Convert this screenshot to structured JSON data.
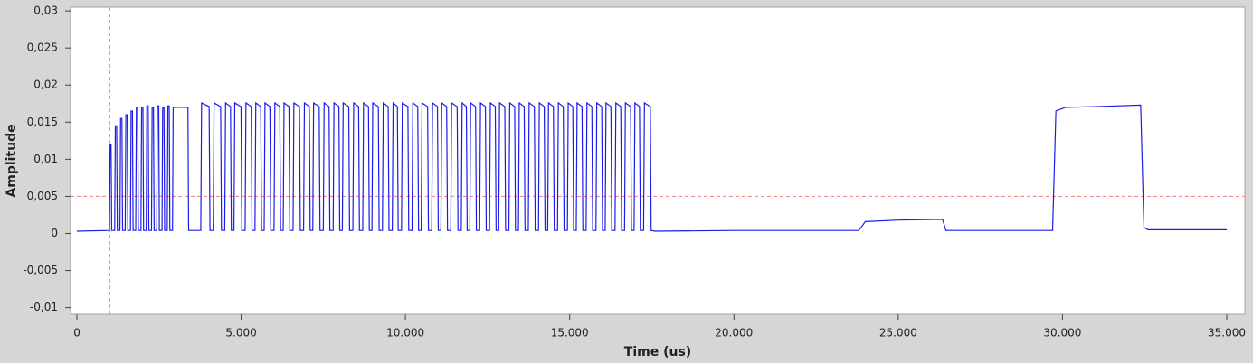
{
  "chart_data": {
    "type": "line",
    "xlabel": "Time (us)",
    "ylabel": "Amplitude",
    "color": "#1c1ce8",
    "marker_color": "#f08080",
    "trigger_x": 1000,
    "trigger_y": 0.005,
    "xlim": [
      -193,
      35551
    ],
    "ylim": [
      -0.0109,
      0.0305
    ],
    "xticks": [
      0,
      {
        "value": 5000,
        "label": "5.000"
      },
      {
        "value": 10000,
        "label": "10.000"
      },
      {
        "value": 15000,
        "label": "15.000"
      },
      {
        "value": 20000,
        "label": "20.000"
      },
      {
        "value": 25000,
        "label": "25.000"
      },
      {
        "value": 30000,
        "label": "30.000"
      },
      {
        "value": 35000,
        "label": "35.000"
      }
    ],
    "yticks": [
      {
        "value": 0.03,
        "label": "0,03"
      },
      {
        "value": 0.025,
        "label": "0,025"
      },
      {
        "value": 0.02,
        "label": "0,02"
      },
      {
        "value": 0.015,
        "label": "0,015"
      },
      {
        "value": 0.01,
        "label": "0,01"
      },
      {
        "value": 0.005,
        "label": "0,005"
      },
      0,
      {
        "value": -0.005,
        "label": "-0,005"
      },
      {
        "value": -0.01,
        "label": "-0,01"
      }
    ],
    "x": [
      0,
      991,
      1011,
      1040,
      1060,
      1150,
      1170,
      1210,
      1230,
      1310,
      1330,
      1370,
      1390,
      1470,
      1490,
      1530,
      1550,
      1630,
      1650,
      1690,
      1710,
      1790,
      1810,
      1850,
      1870,
      1950,
      1970,
      2010,
      2030,
      2110,
      2130,
      2170,
      2190,
      2270,
      2290,
      2330,
      2350,
      2430,
      2450,
      2490,
      2510,
      2590,
      2610,
      2650,
      2670,
      2750,
      2770,
      2810,
      2830,
      2910,
      2930,
      3380,
      3400,
      3770,
      3795,
      4025,
      4050,
      4150,
      4175,
      4375,
      4400,
      4500,
      4525,
      4675,
      4700,
      4780,
      4805,
      4995,
      5020,
      5120,
      5145,
      5305,
      5330,
      5420,
      5445,
      5595,
      5620,
      5700,
      5725,
      5875,
      5900,
      6000,
      6025,
      6175,
      6200,
      6280,
      6305,
      6455,
      6480,
      6580,
      6605,
      6775,
      6800,
      6900,
      6925,
      7075,
      7100,
      7180,
      7205,
      7375,
      7400,
      7500,
      7525,
      7675,
      7700,
      7800,
      7825,
      7975,
      8000,
      8080,
      8105,
      8275,
      8300,
      8400,
      8425,
      8575,
      8600,
      8700,
      8725,
      8875,
      8900,
      8980,
      9005,
      9175,
      9200,
      9300,
      9325,
      9475,
      9500,
      9600,
      9625,
      9755,
      9780,
      9880,
      9905,
      10075,
      10100,
      10200,
      10225,
      10375,
      10400,
      10480,
      10505,
      10675,
      10700,
      10800,
      10825,
      10975,
      11000,
      11080,
      11105,
      11255,
      11280,
      11380,
      11405,
      11575,
      11600,
      11700,
      11725,
      11855,
      11880,
      11960,
      11985,
      12135,
      12160,
      12260,
      12285,
      12435,
      12460,
      12560,
      12585,
      12735,
      12760,
      12840,
      12865,
      13025,
      13050,
      13150,
      13175,
      13325,
      13350,
      13440,
      13465,
      13615,
      13640,
      13740,
      13765,
      13925,
      13950,
      14050,
      14075,
      14225,
      14250,
      14330,
      14355,
      14505,
      14530,
      14630,
      14655,
      14805,
      14830,
      14930,
      14955,
      15095,
      15120,
      15200,
      15225,
      15375,
      15400,
      15500,
      15525,
      15675,
      15700,
      15800,
      15825,
      15975,
      16000,
      16080,
      16105,
      16255,
      16280,
      16380,
      16405,
      16555,
      16580,
      16670,
      16695,
      16855,
      16880,
      16960,
      16985,
      17125,
      17150,
      17250,
      17275,
      17455,
      17480,
      17600,
      20000,
      23800,
      24000,
      25000,
      26350,
      26450,
      29700,
      29800,
      30100,
      31000,
      32380,
      32480,
      32600,
      35000
    ],
    "values": [
      0.0003,
      0.0004,
      0.012,
      0.012,
      0.0004,
      0.0004,
      0.0145,
      0.0145,
      0.0004,
      0.0004,
      0.0155,
      0.0155,
      0.0004,
      0.0004,
      0.016,
      0.016,
      0.0004,
      0.0004,
      0.0165,
      0.0165,
      0.0004,
      0.0004,
      0.017,
      0.017,
      0.0004,
      0.0004,
      0.017,
      0.017,
      0.0004,
      0.0004,
      0.0172,
      0.0172,
      0.0004,
      0.0004,
      0.017,
      0.017,
      0.0004,
      0.0004,
      0.0172,
      0.0172,
      0.0004,
      0.0004,
      0.017,
      0.017,
      0.0004,
      0.0004,
      0.0172,
      0.0172,
      0.0004,
      0.0004,
      0.017,
      0.017,
      0.0004,
      0.0004,
      0.0176,
      0.0171,
      0.0004,
      0.0004,
      0.0176,
      0.0171,
      0.0004,
      0.0004,
      0.0176,
      0.0171,
      0.0004,
      0.0004,
      0.0176,
      0.0171,
      0.0004,
      0.0004,
      0.0176,
      0.0171,
      0.0004,
      0.0004,
      0.0176,
      0.0171,
      0.0004,
      0.0004,
      0.0176,
      0.0171,
      0.0004,
      0.0004,
      0.0176,
      0.0171,
      0.0004,
      0.0004,
      0.0176,
      0.0171,
      0.0004,
      0.0004,
      0.0176,
      0.0171,
      0.0004,
      0.0004,
      0.0176,
      0.0171,
      0.0004,
      0.0004,
      0.0176,
      0.0171,
      0.0004,
      0.0004,
      0.0176,
      0.0171,
      0.0004,
      0.0004,
      0.0176,
      0.0171,
      0.0004,
      0.0004,
      0.0176,
      0.0171,
      0.0004,
      0.0004,
      0.0176,
      0.0171,
      0.0004,
      0.0004,
      0.0176,
      0.0171,
      0.0004,
      0.0004,
      0.0176,
      0.0171,
      0.0004,
      0.0004,
      0.0176,
      0.0171,
      0.0004,
      0.0004,
      0.0176,
      0.0171,
      0.0004,
      0.0004,
      0.0176,
      0.0171,
      0.0004,
      0.0004,
      0.0176,
      0.0171,
      0.0004,
      0.0004,
      0.0176,
      0.0171,
      0.0004,
      0.0004,
      0.0176,
      0.0171,
      0.0004,
      0.0004,
      0.0176,
      0.0171,
      0.0004,
      0.0004,
      0.0176,
      0.0171,
      0.0004,
      0.0004,
      0.0176,
      0.0171,
      0.0004,
      0.0004,
      0.0176,
      0.0171,
      0.0004,
      0.0004,
      0.0176,
      0.0171,
      0.0004,
      0.0004,
      0.0176,
      0.0171,
      0.0004,
      0.0004,
      0.0176,
      0.0171,
      0.0004,
      0.0004,
      0.0176,
      0.0171,
      0.0004,
      0.0004,
      0.0176,
      0.0171,
      0.0004,
      0.0004,
      0.0176,
      0.0171,
      0.0004,
      0.0004,
      0.0176,
      0.0171,
      0.0004,
      0.0004,
      0.0176,
      0.0171,
      0.0004,
      0.0004,
      0.0176,
      0.0171,
      0.0004,
      0.0004,
      0.0176,
      0.0171,
      0.0004,
      0.0004,
      0.0176,
      0.0171,
      0.0004,
      0.0004,
      0.0176,
      0.0171,
      0.0004,
      0.0004,
      0.0176,
      0.0171,
      0.0004,
      0.0004,
      0.0176,
      0.0171,
      0.0004,
      0.0004,
      0.0176,
      0.0171,
      0.0004,
      0.0004,
      0.0176,
      0.0171,
      0.0004,
      0.0004,
      0.0176,
      0.0171,
      0.0004,
      0.0004,
      0.0176,
      0.0171,
      0.0004,
      0.0003,
      0.0004,
      0.0004,
      0.0016,
      0.0018,
      0.0019,
      0.0004,
      0.0004,
      0.0165,
      0.017,
      0.0171,
      0.0173,
      0.0008,
      0.0005,
      0.0005
    ]
  }
}
